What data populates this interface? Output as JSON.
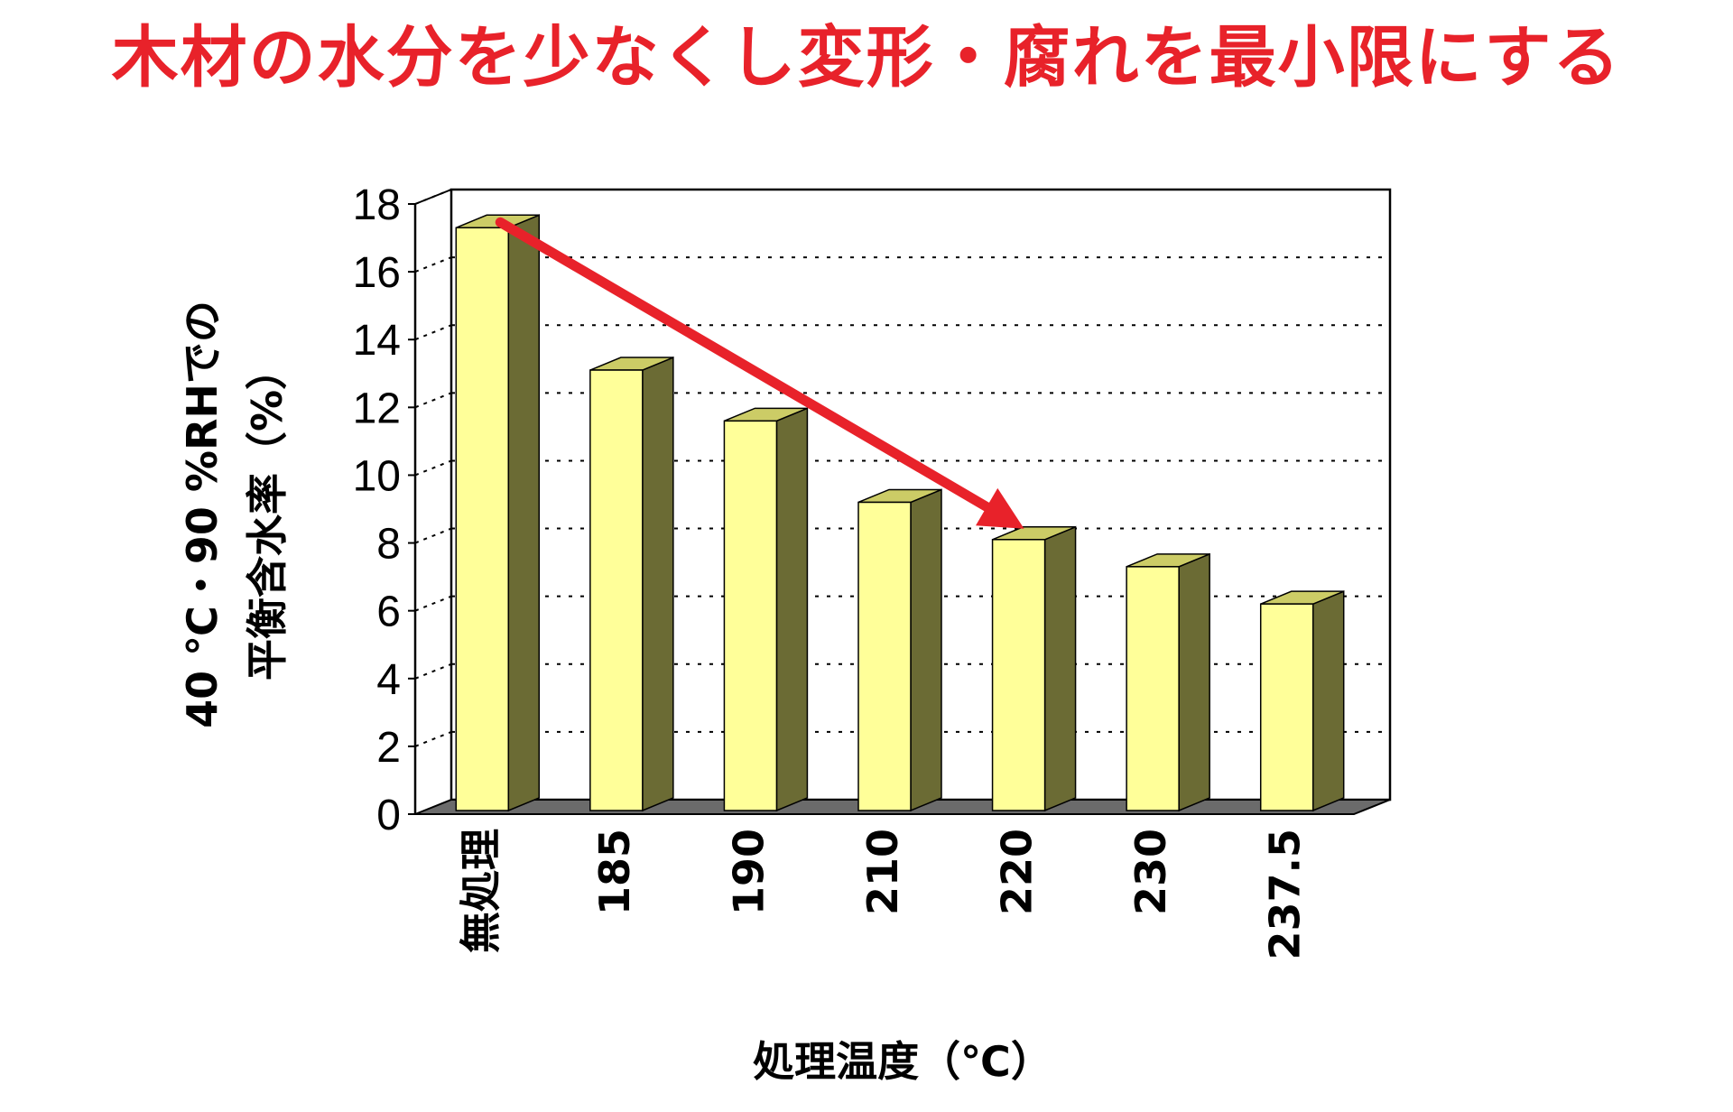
{
  "headline": {
    "text": "木材の水分を少なくし変形・腐れを最小限にする",
    "color": "#e8222a"
  },
  "chart_data": {
    "type": "bar",
    "style": "3d",
    "categories": [
      "無処理",
      "185",
      "190",
      "210",
      "220",
      "230",
      "237.5"
    ],
    "values": [
      17.3,
      13.1,
      11.6,
      9.2,
      8.1,
      7.3,
      6.2
    ],
    "ylabel_line1": "40 ℃・90 %RHでの",
    "ylabel_line2": "平衡含水率（%）",
    "xlabel": "処理温度（℃）",
    "ylim": [
      0,
      18
    ],
    "yticks": [
      0,
      2,
      4,
      6,
      8,
      10,
      12,
      14,
      16,
      18
    ],
    "grid": true,
    "arrow": {
      "from_category": "無処理",
      "to_category": "220",
      "color": "#e8222a"
    },
    "colors": {
      "bar_front": "#ffff99",
      "bar_side": "#6b6b34",
      "bar_top": "#cccc66",
      "floor": "#6b6b6b"
    }
  }
}
